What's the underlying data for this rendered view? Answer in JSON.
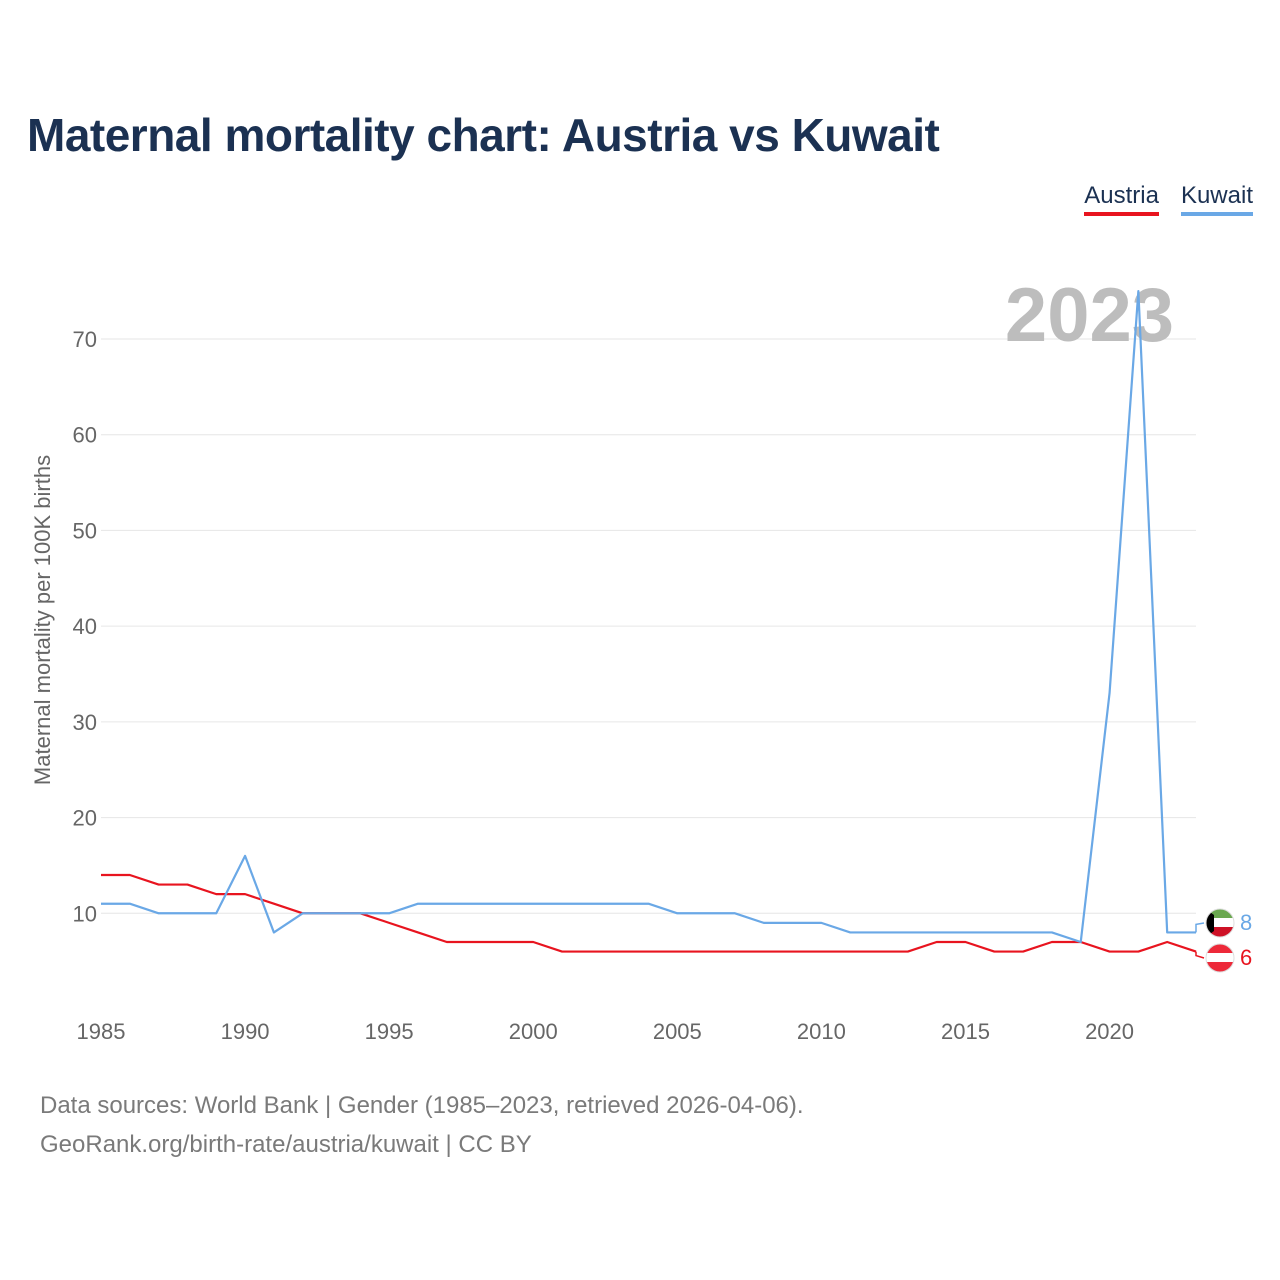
{
  "title": "Maternal mortality chart: Austria vs Kuwait",
  "legend": {
    "austria": "Austria",
    "kuwait": "Kuwait"
  },
  "year_badge": "2023",
  "source": {
    "line1": "Data sources: World Bank | Gender (1985–2023, retrieved 2026-04-06).",
    "line2": "GeoRank.org/birth-rate/austria/kuwait | CC BY"
  },
  "colors": {
    "austria": "#e8141f",
    "kuwait": "#6aa8e6",
    "title": "#1b3152"
  },
  "chart_data": {
    "type": "line",
    "title": "Maternal mortality chart: Austria vs Kuwait",
    "xlabel": "",
    "ylabel": "Maternal mortality per 100K births",
    "x": [
      1985,
      1986,
      1987,
      1988,
      1989,
      1990,
      1991,
      1992,
      1993,
      1994,
      1995,
      1996,
      1997,
      1998,
      1999,
      2000,
      2001,
      2002,
      2003,
      2004,
      2005,
      2006,
      2007,
      2008,
      2009,
      2010,
      2011,
      2012,
      2013,
      2014,
      2015,
      2016,
      2017,
      2018,
      2019,
      2020,
      2021,
      2022,
      2023
    ],
    "xlim": [
      1985,
      2023
    ],
    "ylim": [
      0,
      75
    ],
    "xticks": [
      1985,
      1990,
      1995,
      2000,
      2005,
      2010,
      2015,
      2020
    ],
    "yticks": [
      10,
      20,
      30,
      40,
      50,
      60,
      70
    ],
    "series": [
      {
        "name": "Austria",
        "color": "#e8141f",
        "end_label": "6",
        "values": [
          14,
          14,
          13,
          13,
          12,
          12,
          11,
          10,
          10,
          10,
          9,
          8,
          7,
          7,
          7,
          7,
          6,
          6,
          6,
          6,
          6,
          6,
          6,
          6,
          6,
          6,
          6,
          6,
          6,
          7,
          7,
          6,
          6,
          7,
          7,
          6,
          6,
          7,
          6
        ]
      },
      {
        "name": "Kuwait",
        "color": "#6aa8e6",
        "end_label": "8",
        "values": [
          11,
          11,
          10,
          10,
          10,
          16,
          8,
          10,
          10,
          10,
          10,
          11,
          11,
          11,
          11,
          11,
          11,
          11,
          11,
          11,
          10,
          10,
          10,
          9,
          9,
          9,
          8,
          8,
          8,
          8,
          8,
          8,
          8,
          8,
          7,
          33,
          75,
          8,
          8
        ]
      }
    ]
  }
}
